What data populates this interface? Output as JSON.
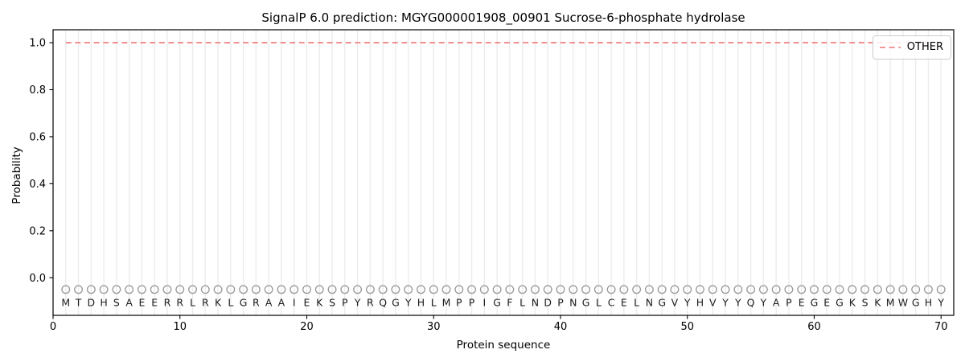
{
  "chart_data": {
    "type": "line",
    "title": "SignalP 6.0 prediction: MGYG000001908_00901 Sucrose-6-phosphate hydrolase",
    "xlabel": "Protein sequence",
    "ylabel": "Probability",
    "xlim": [
      0,
      71
    ],
    "ylim": [
      -0.16,
      1.055
    ],
    "xticks": [
      0,
      10,
      20,
      30,
      40,
      50,
      60,
      70
    ],
    "yticks": [
      0.0,
      0.2,
      0.4,
      0.6,
      0.8,
      1.0
    ],
    "grid": {
      "vertical_line_per_residue": true,
      "color": "#ececec"
    },
    "legend": {
      "position": "upper-right",
      "border_color": "#cccccc",
      "entries": [
        {
          "label": "OTHER",
          "color": "#f08888",
          "style": "dashed"
        }
      ]
    },
    "sequence": "MTDHSAEERRLRKLGRAAIEKSPYRQGYHLMPPIGFLNDPNGLCELNGVYHVYYQYAPEGEGKSKMWGHY",
    "sequence_positions": {
      "start": 1,
      "end": 70
    },
    "sequence_markers": {
      "shape": "open-circle",
      "color": "#999999",
      "y": -0.05
    },
    "sequence_letter_y": -0.105,
    "series": [
      {
        "name": "OTHER",
        "color": "#f08888",
        "style": "dashed",
        "x_start": 1,
        "x_end": 70,
        "values": [
          1.0,
          1.0,
          1.0,
          1.0,
          1.0,
          1.0,
          1.0,
          1.0,
          1.0,
          1.0,
          1.0,
          1.0,
          1.0,
          1.0,
          1.0,
          1.0,
          1.0,
          1.0,
          1.0,
          1.0,
          1.0,
          1.0,
          1.0,
          1.0,
          1.0,
          1.0,
          1.0,
          1.0,
          1.0,
          1.0,
          1.0,
          1.0,
          1.0,
          1.0,
          1.0,
          1.0,
          1.0,
          1.0,
          1.0,
          1.0,
          1.0,
          1.0,
          1.0,
          1.0,
          1.0,
          1.0,
          1.0,
          1.0,
          1.0,
          1.0,
          1.0,
          1.0,
          1.0,
          1.0,
          1.0,
          1.0,
          1.0,
          1.0,
          1.0,
          1.0,
          1.0,
          1.0,
          1.0,
          1.0,
          1.0,
          1.0,
          1.0,
          1.0,
          1.0,
          1.0
        ]
      }
    ],
    "axis_color": "#000000"
  }
}
